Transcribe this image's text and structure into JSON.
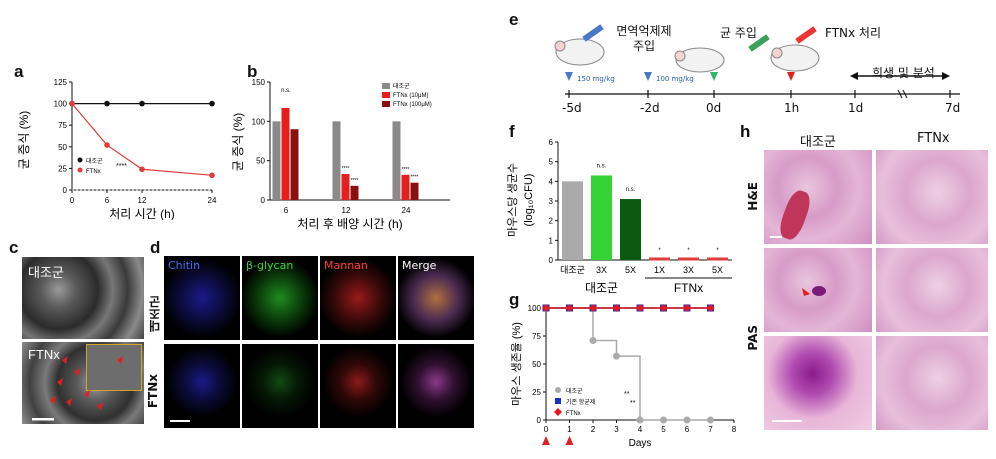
{
  "panel_letters": {
    "a": "a",
    "b": "b",
    "c": "c",
    "d": "d",
    "e": "e",
    "f": "f",
    "g": "g",
    "h": "h"
  },
  "chart_data": [
    {
      "id": "a",
      "type": "line",
      "ylabel": "균 증식 (%)",
      "xlabel": "처리 시간 (h)",
      "x": [
        0,
        6,
        12,
        24
      ],
      "xticks": [
        "0",
        "6",
        "12",
        "24"
      ],
      "ylim": [
        0,
        125
      ],
      "yticks": [
        "0",
        "25",
        "50",
        "75",
        "100",
        "125"
      ],
      "series": [
        {
          "name": "대조군",
          "values": [
            100,
            100,
            100,
            100
          ],
          "color": "#111111"
        },
        {
          "name": "FTNx",
          "values": [
            100,
            52,
            24,
            17
          ],
          "color": "#e23b3b"
        }
      ],
      "annotation": "****"
    },
    {
      "id": "b",
      "type": "bar",
      "ylabel": "균 증식 (%)",
      "xlabel": "처리 후 배양 시간 (h)",
      "categories": [
        "6",
        "12",
        "24"
      ],
      "ylim": [
        0,
        150
      ],
      "yticks": [
        "0",
        "50",
        "100",
        "150"
      ],
      "series": [
        {
          "name": "대조군",
          "values": [
            100,
            100,
            100
          ],
          "color": "#8a8a8a"
        },
        {
          "name": "FTNx (10μM)",
          "values": [
            117,
            33,
            32
          ],
          "color": "#e51f1f"
        },
        {
          "name": "FTNx (100μM)",
          "values": [
            90,
            18,
            22
          ],
          "color": "#8b1010"
        }
      ],
      "annotations": [
        "n.s.",
        "****",
        "****",
        "****",
        "****"
      ]
    },
    {
      "id": "f",
      "type": "bar",
      "ylabel": "마우스당 생균수",
      "ylabel2": "(log₁₀CFU)",
      "categories": [
        "대조군",
        "3X",
        "5X",
        "1X",
        "3X",
        "5X"
      ],
      "groups": [
        "대조군",
        "FTNx"
      ],
      "ylim": [
        0,
        6
      ],
      "yticks": [
        "0",
        "1",
        "2",
        "3",
        "4",
        "5",
        "6"
      ],
      "values": [
        4.0,
        4.3,
        3.1,
        0,
        0,
        0
      ],
      "colors": [
        "#aaaaaa",
        "#35d335",
        "#0c5a12",
        "#e23b3b",
        "#e23b3b",
        "#e23b3b"
      ],
      "annotations": [
        "n.s.",
        "n.s.",
        "*",
        "*",
        "*"
      ]
    },
    {
      "id": "g",
      "type": "line",
      "ylabel": "마우스 생존율 (%)",
      "xlabel": "Days",
      "x": [
        0,
        1,
        2,
        3,
        4,
        5,
        6,
        7
      ],
      "xticks": [
        "0",
        "1",
        "2",
        "3",
        "4",
        "5",
        "6",
        "7",
        "8"
      ],
      "ylim": [
        0,
        100
      ],
      "yticks": [
        "0",
        "25",
        "50",
        "75",
        "100"
      ],
      "series": [
        {
          "name": "대조군",
          "values": [
            100,
            100,
            71,
            57,
            0,
            0,
            0,
            0
          ],
          "color": "#aaaaaa"
        },
        {
          "name": "기존 항균제",
          "values": [
            100,
            100,
            100,
            100,
            100,
            100,
            100,
            100
          ],
          "color": "#1d2fc9"
        },
        {
          "name": "FTNx",
          "values": [
            100,
            100,
            100,
            100,
            100,
            100,
            100,
            100
          ],
          "color": "#e31b1b"
        }
      ],
      "annotations": [
        "**",
        "**"
      ]
    }
  ],
  "panel_c": {
    "label_top": "대조군",
    "label_bottom": "FTNx"
  },
  "panel_d": {
    "columns": [
      "Chitin",
      "β-glycan",
      "Mannan",
      "Merge"
    ],
    "rows": [
      "대조군",
      "FTNx"
    ]
  },
  "panel_e": {
    "steps": [
      "면역억제제 주입",
      "균 주입",
      "FTNx 처리"
    ],
    "doses": [
      "150 mg/kg",
      "100 mg/kg"
    ],
    "timeline": [
      "-5d",
      "-2d",
      "0d",
      "1h",
      "1d",
      "7d"
    ],
    "range_label": "희생 및 분석"
  },
  "panel_h": {
    "columns": [
      "대조군",
      "FTNx"
    ],
    "rows": [
      "H&E",
      "PAS"
    ]
  }
}
